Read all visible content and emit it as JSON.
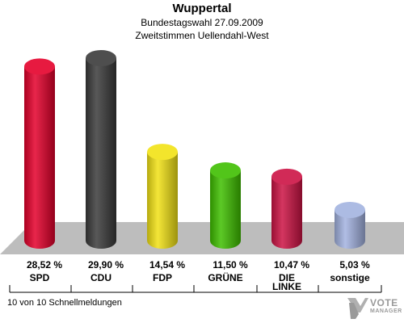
{
  "header": {
    "title": "Wuppertal",
    "subtitle1": "Bundestagswahl 27.09.2009",
    "subtitle2": "Zweitstimmen Uellendahl-West"
  },
  "footer": {
    "text": "10 von 10 Schnellmeldungen"
  },
  "logo": {
    "word1": "VOTE",
    "word2": "MANAGER"
  },
  "chart_data": {
    "type": "bar",
    "title": "Wuppertal",
    "subtitle": "Bundestagswahl 27.09.2009 / Zweitstimmen Uellendahl-West",
    "categories": [
      "SPD",
      "CDU",
      "FDP",
      "GRÜNE",
      "DIE LINKE",
      "sonstige"
    ],
    "values": [
      28.52,
      29.9,
      14.54,
      11.5,
      10.47,
      5.03
    ],
    "value_labels": [
      "28,52 %",
      "29,90 %",
      "14,54 %",
      "11,50 %",
      "10,47 %",
      "5,03 %"
    ],
    "unit": "%",
    "colors": [
      "#e4002b",
      "#3a3a3a",
      "#f2e215",
      "#3fbf00",
      "#cc1244",
      "#a3b3e0"
    ],
    "ylim": [
      0,
      30
    ],
    "grid": false,
    "legend": "none"
  }
}
